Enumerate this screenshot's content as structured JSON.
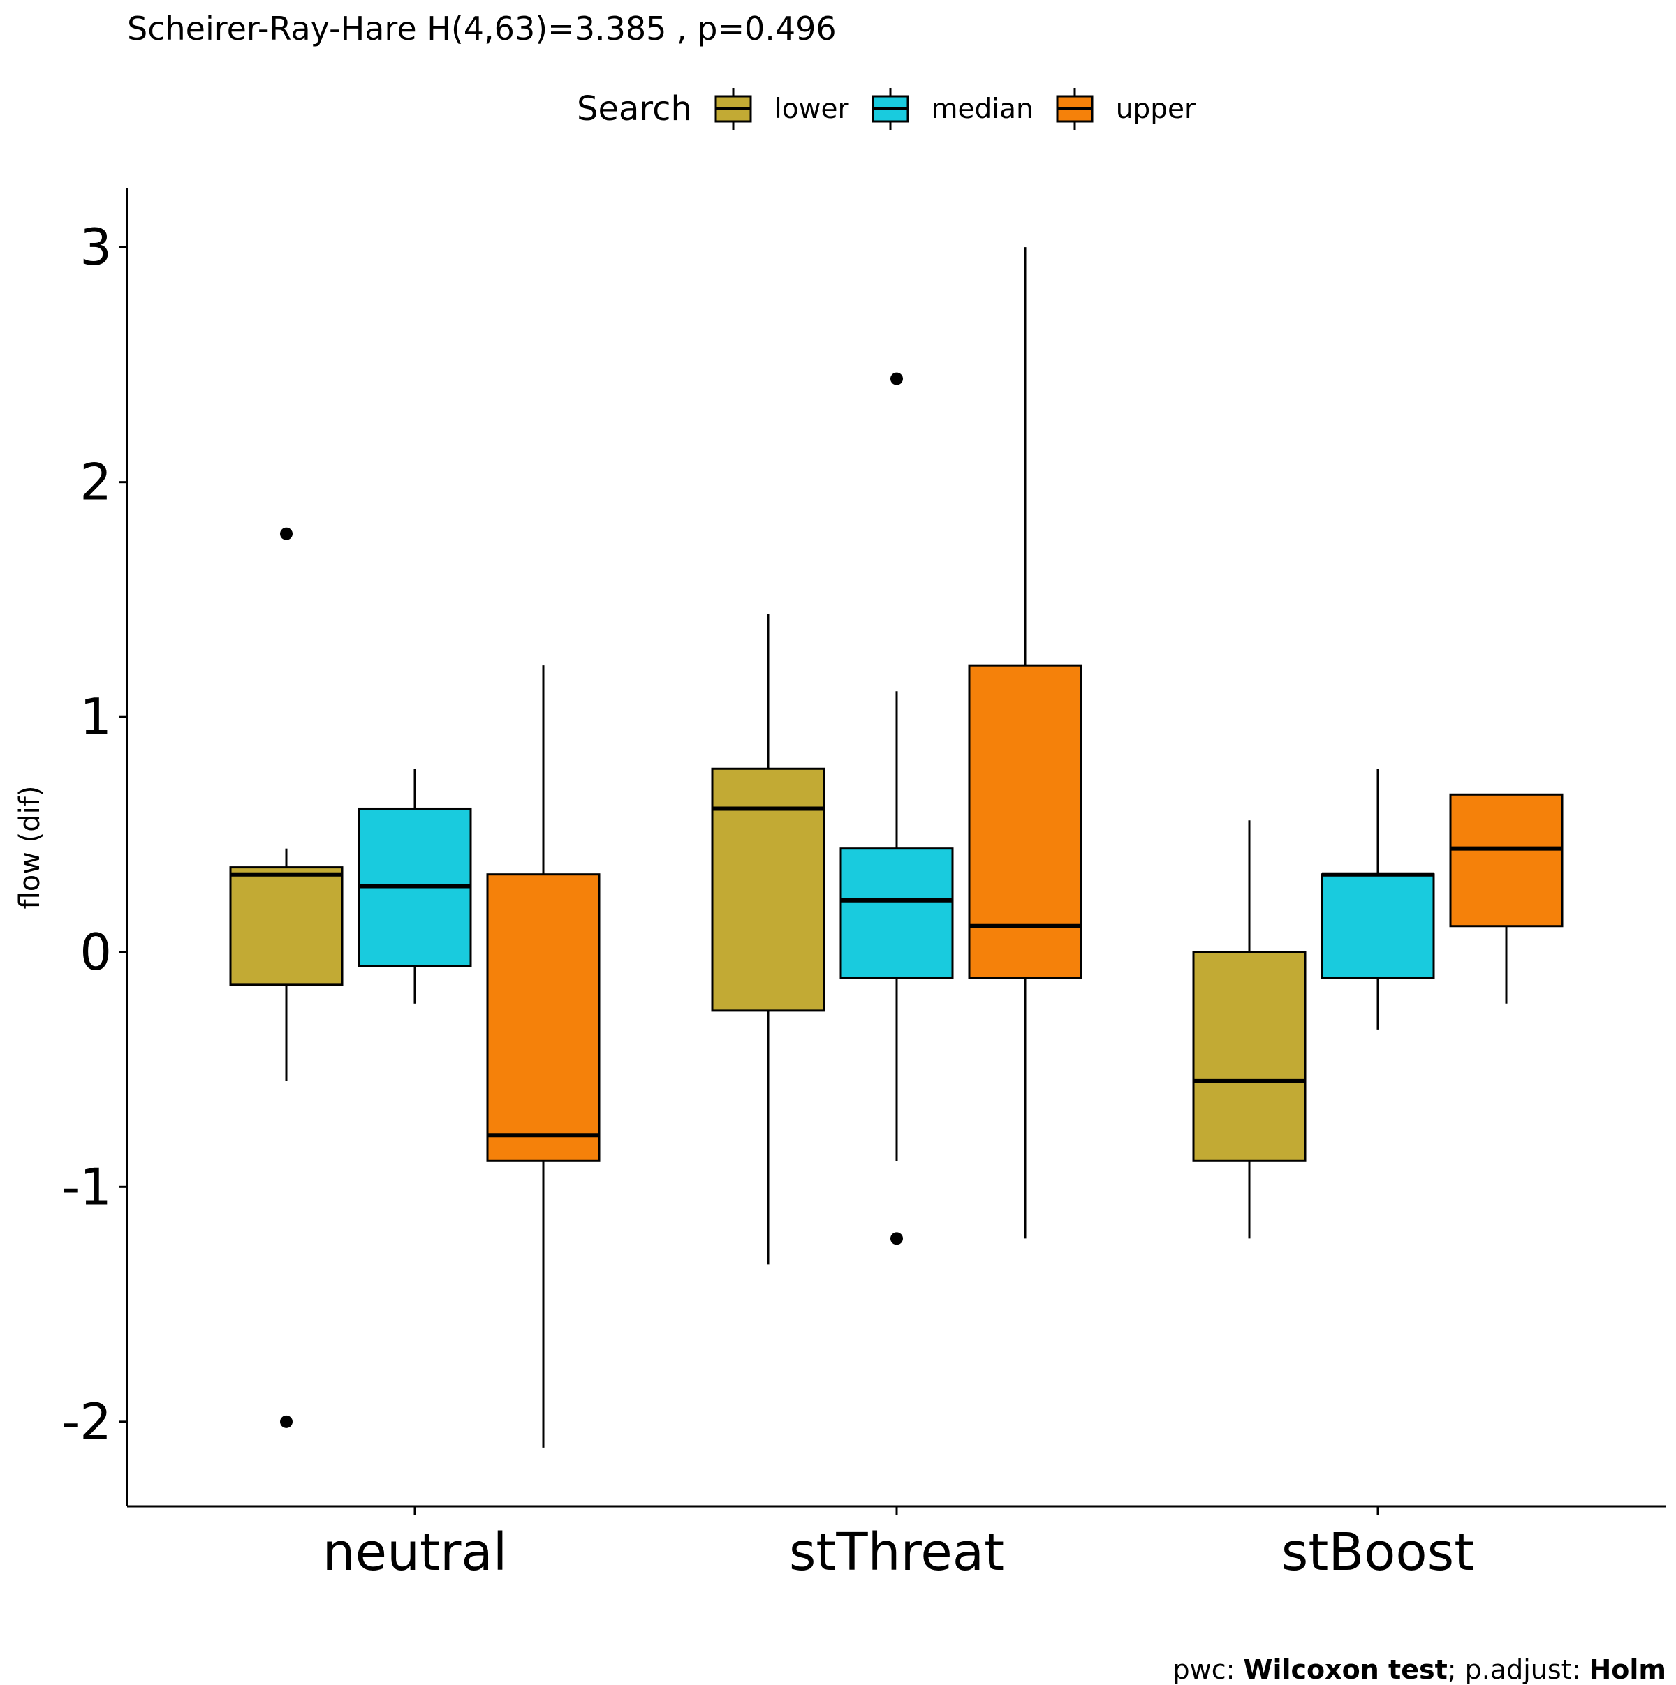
{
  "chart_data": {
    "type": "box",
    "title": "Scheirer-Ray-Hare H(4,63)=3.385 , p=0.496",
    "ylabel": "flow (dif)",
    "xlabel": "",
    "ylim": [
      -2.36,
      3.25
    ],
    "yticks": [
      -2,
      -1,
      0,
      1,
      2,
      3
    ],
    "ytick_labels": [
      "-2",
      "-1",
      "0",
      "1",
      "2",
      "3"
    ],
    "categories": [
      "neutral",
      "stThreat",
      "stBoost"
    ],
    "legend": {
      "title": "Search",
      "position": "top"
    },
    "series": [
      {
        "name": "lower",
        "color": "#C2AA34",
        "boxes": [
          {
            "category": "neutral",
            "whisker_low": -0.55,
            "q1": -0.14,
            "median": 0.33,
            "q3": 0.36,
            "whisker_high": 0.44,
            "outliers": [
              1.78,
              -2.0
            ]
          },
          {
            "category": "stThreat",
            "whisker_low": -1.33,
            "q1": -0.25,
            "median": 0.61,
            "q3": 0.78,
            "whisker_high": 1.44,
            "outliers": []
          },
          {
            "category": "stBoost",
            "whisker_low": -1.22,
            "q1": -0.89,
            "median": -0.55,
            "q3": 0.0,
            "whisker_high": 0.56,
            "outliers": []
          }
        ]
      },
      {
        "name": "median",
        "color": "#19CBDE",
        "boxes": [
          {
            "category": "neutral",
            "whisker_low": -0.22,
            "q1": -0.06,
            "median": 0.28,
            "q3": 0.61,
            "whisker_high": 0.78,
            "outliers": []
          },
          {
            "category": "stThreat",
            "whisker_low": -0.89,
            "q1": -0.11,
            "median": 0.22,
            "q3": 0.44,
            "whisker_high": 1.11,
            "outliers": [
              2.44,
              -1.22
            ]
          },
          {
            "category": "stBoost",
            "whisker_low": -0.33,
            "q1": -0.11,
            "median": 0.33,
            "q3": 0.33,
            "whisker_high": 0.78,
            "outliers": []
          }
        ]
      },
      {
        "name": "upper",
        "color": "#F5810A",
        "boxes": [
          {
            "category": "neutral",
            "whisker_low": -2.11,
            "q1": -0.89,
            "median": -0.78,
            "q3": 0.33,
            "whisker_high": 1.22,
            "outliers": []
          },
          {
            "category": "stThreat",
            "whisker_low": -1.22,
            "q1": -0.11,
            "median": 0.11,
            "q3": 1.22,
            "whisker_high": 3.0,
            "outliers": []
          },
          {
            "category": "stBoost",
            "whisker_low": -0.22,
            "q1": 0.11,
            "median": 0.44,
            "q3": 0.67,
            "whisker_high": 0.67,
            "outliers": []
          }
        ]
      }
    ]
  },
  "caption": {
    "prefix": "pwc: ",
    "test": "Wilcoxon test",
    "middle": "; p.adjust: ",
    "adjust": "Holm"
  }
}
